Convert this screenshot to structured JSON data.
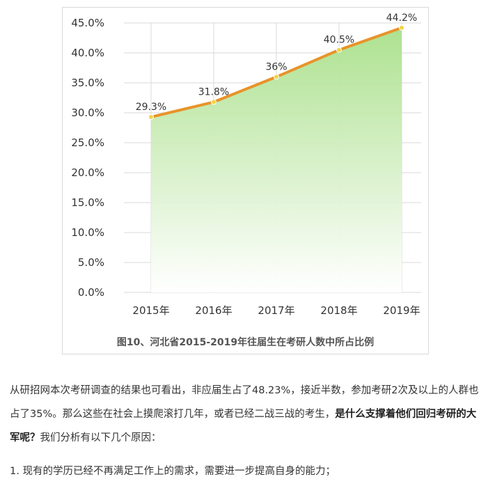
{
  "chart_data": {
    "type": "area",
    "categories": [
      "2015年",
      "2016年",
      "2017年",
      "2018年",
      "2019年"
    ],
    "values": [
      29.3,
      31.8,
      36,
      40.5,
      44.2
    ],
    "data_labels": [
      "29.3%",
      "31.8%",
      "36%",
      "40.5%",
      "44.2%"
    ],
    "ylim": [
      0,
      45
    ],
    "y_ticks": [
      "0.0%",
      "5.0%",
      "10.0%",
      "15.0%",
      "20.0%",
      "25.0%",
      "30.0%",
      "35.0%",
      "40.0%",
      "45.0%"
    ],
    "grid": true,
    "colors": {
      "line": "#e8932a",
      "marker": "#f3d24a",
      "fill_top": "#a9e08a",
      "fill_bottom": "#ffffff",
      "grid": "#d9d9d9"
    }
  },
  "caption": "图10、河北省2015-2019年往届生在考研人数中所占比例",
  "article": {
    "p1_normal": "从研招网本次考研调查的结果也可看出，非应届生占了48.23%，接近半数，参加考研2次及以上的人群也占了35%。那么这些在社会上摸爬滚打几年，或者已经二战三战的考生，",
    "p1_bold": "是什么支撑着他们回归考研的大军呢？",
    "p1_tail": "我们分析有以下几个原因：",
    "item1": "1. 现有的学历已经不再满足工作上的需求，需要进一步提高自身的能力；"
  }
}
